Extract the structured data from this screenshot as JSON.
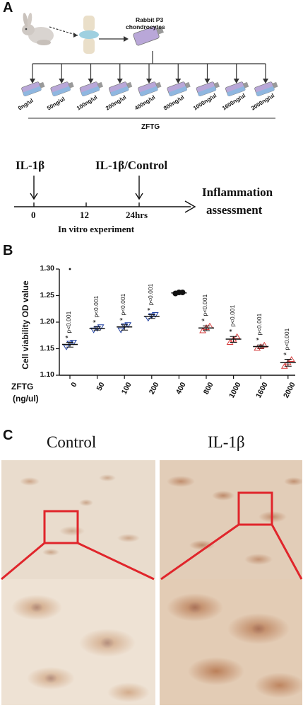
{
  "panelA": {
    "letter": "A",
    "cell_label_line1": "Rabbit P3",
    "cell_label_line2": "chondrocytes",
    "doses": [
      "0ng/ul",
      "50ng/ul",
      "100ng/ul",
      "200ng/ul",
      "400ng/ul",
      "800ng/ul",
      "1000ng/ul",
      "1600ng/ul",
      "2000ng/ul"
    ],
    "group_label": "ZFTG",
    "timeline": {
      "start_label": "IL-1β",
      "mid_label": "IL-1β/Control",
      "ticks": [
        "0",
        "12",
        "24hrs"
      ],
      "end_label_line1": "Inflammation",
      "end_label_line2": "assessment",
      "caption": "In vitro experiment"
    }
  },
  "panelB": {
    "letter": "B"
  },
  "chart_data": {
    "type": "scatter",
    "ylabel": "Cell viability OD value",
    "xlabel": "ZFTG (ng/ul)",
    "xlabel_line1": "ZFTG",
    "xlabel_line2": "(ng/ul)",
    "ylim": [
      1.1,
      1.3
    ],
    "yticks": [
      "1.10",
      "1.15",
      "1.20",
      "1.25",
      "1.30"
    ],
    "categories": [
      "0",
      "50",
      "100",
      "200",
      "400",
      "800",
      "1000",
      "1600",
      "2000"
    ],
    "means": [
      1.158,
      1.188,
      1.191,
      1.211,
      1.255,
      1.189,
      1.168,
      1.154,
      1.124
    ],
    "points": [
      [
        1.153,
        1.16,
        1.162
      ],
      [
        1.185,
        1.188,
        1.191
      ],
      [
        1.185,
        1.193,
        1.195
      ],
      [
        1.207,
        1.212,
        1.214
      ],
      [
        1.254,
        1.256,
        1.256
      ],
      [
        1.184,
        1.19,
        1.193
      ],
      [
        1.162,
        1.168,
        1.173
      ],
      [
        1.151,
        1.154,
        1.157
      ],
      [
        1.117,
        1.124,
        1.13
      ]
    ],
    "outlier": {
      "category": "0",
      "value": 1.3
    },
    "group_colors": [
      "#1f3fa0",
      "#1f3fa0",
      "#1f3fa0",
      "#1f3fa0",
      "#111111",
      "#d63a3a",
      "#d63a3a",
      "#d63a3a",
      "#d63a3a"
    ],
    "annotation_star": "*",
    "annotation_text": "p<0.001",
    "annotated_categories": [
      "0",
      "50",
      "100",
      "200",
      "800",
      "1000",
      "1600",
      "2000"
    ]
  },
  "panelC": {
    "letter": "C",
    "left_title": "Control",
    "right_title": "IL-1β",
    "highlight_color": "#e0252b"
  }
}
